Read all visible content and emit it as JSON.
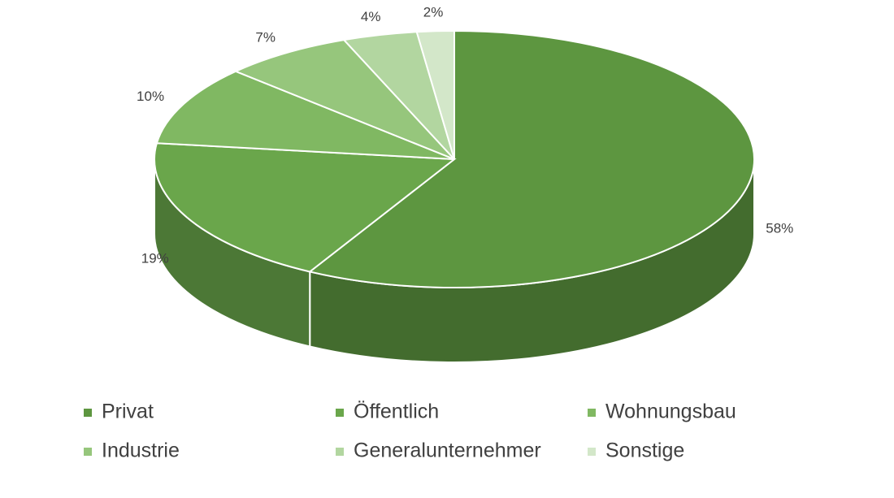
{
  "chart_data": {
    "type": "pie",
    "categories": [
      "Privat",
      "Öffentlich",
      "Wohnungsbau",
      "Industrie",
      "Generalunternehmer",
      "Sonstige"
    ],
    "values": [
      58,
      19,
      10,
      7,
      4,
      2
    ],
    "value_labels": [
      "58%",
      "19%",
      "10%",
      "7%",
      "4%",
      "2%"
    ],
    "colors": [
      "#5d9640",
      "#6aa64b",
      "#80b862",
      "#96c67c",
      "#b2d6a0",
      "#d3e7c9"
    ],
    "legend": "bottom"
  }
}
